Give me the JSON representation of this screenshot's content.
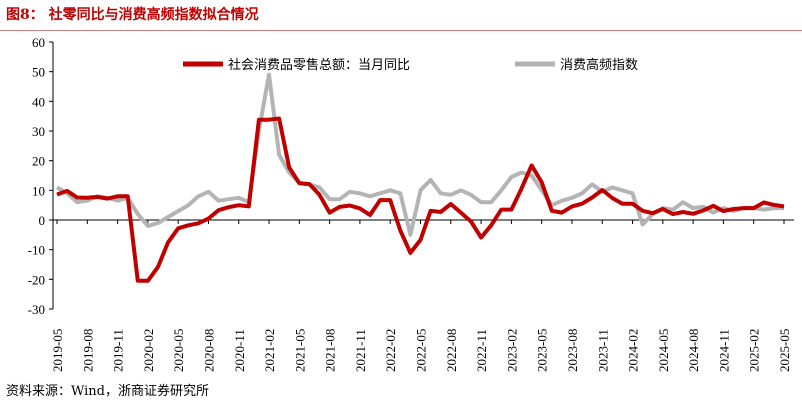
{
  "title": "图8：  社零同比与消费高频指数拟合情况",
  "source": "资料来源：Wind，浙商证券研究所",
  "chart_data": {
    "type": "line",
    "title": "社零同比与消费高频指数拟合情况",
    "ylim": [
      -30,
      60
    ],
    "yticks": [
      -30,
      -20,
      -10,
      0,
      10,
      20,
      30,
      40,
      50,
      60
    ],
    "start": "2019-05",
    "xtick_labels": [
      "2019-05",
      "2019-08",
      "2019-11",
      "2020-02",
      "2020-05",
      "2020-08",
      "2020-11",
      "2021-02",
      "2021-05",
      "2021-08",
      "2021-11",
      "2022-02",
      "2022-05",
      "2022-08",
      "2022-11",
      "2023-02",
      "2023-05",
      "2023-08",
      "2023-11",
      "2024-02",
      "2024-05",
      "2024-08",
      "2024-11",
      "2025-02",
      "2025-05"
    ],
    "legend_position": "top",
    "series": [
      {
        "name": "社会消费品零售总额：当月同比",
        "color": "#c00000",
        "values": [
          8.6,
          9.8,
          7.6,
          7.5,
          7.8,
          7.2,
          8.0,
          8.0,
          -20.5,
          -20.5,
          -15.8,
          -7.5,
          -2.8,
          -1.8,
          -1.1,
          0.5,
          3.3,
          4.3,
          5.0,
          4.6,
          33.8,
          33.8,
          34.2,
          17.7,
          12.4,
          12.1,
          8.5,
          2.5,
          4.4,
          4.9,
          3.9,
          1.7,
          6.7,
          6.7,
          -3.5,
          -11.1,
          -6.7,
          3.1,
          2.7,
          5.4,
          2.5,
          -0.5,
          -5.9,
          -1.8,
          3.5,
          3.5,
          10.6,
          18.4,
          12.7,
          3.1,
          2.5,
          4.6,
          5.5,
          7.6,
          10.1,
          7.4,
          5.5,
          5.5,
          3.1,
          2.3,
          3.7,
          2.0,
          2.7,
          2.1,
          3.2,
          4.8,
          3.0,
          3.7,
          4.0,
          4.0,
          5.9,
          5.1,
          4.6
        ]
      },
      {
        "name": "消费高频指数",
        "color": "#b4b4b4",
        "values": [
          11,
          9,
          6,
          6.5,
          8,
          7.5,
          6.5,
          7.5,
          2,
          -2,
          -1,
          1,
          3,
          5,
          8,
          9.5,
          6.5,
          7,
          7.5,
          6,
          30,
          49,
          22,
          16,
          12.5,
          12,
          11,
          7,
          7,
          9.5,
          9,
          8,
          9,
          10,
          9,
          -5,
          10,
          13.5,
          9,
          8.5,
          10,
          8.5,
          6,
          6,
          10,
          14.5,
          16,
          15,
          10,
          5,
          6.5,
          7.5,
          9,
          12,
          9.5,
          11,
          10,
          9,
          -1.5,
          2,
          4,
          3.5,
          6,
          4,
          4.5,
          2.5,
          4,
          3,
          4,
          4,
          3.5,
          4,
          4
        ]
      }
    ]
  }
}
